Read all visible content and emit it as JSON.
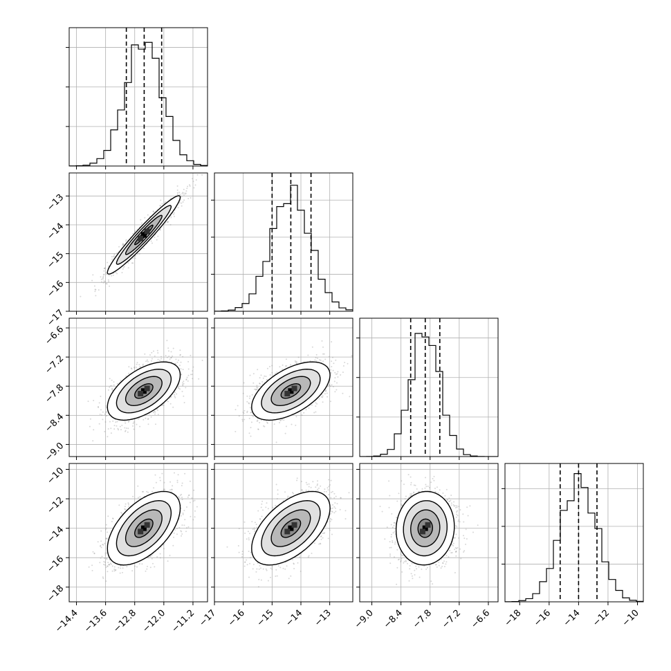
{
  "chart_data": {
    "type": "corner",
    "grid": true,
    "axes": {
      "p0": {
        "lim": [
          -14.6,
          -10.8
        ],
        "ticks": [
          -14.4,
          -13.6,
          -12.8,
          -12.0,
          -11.2
        ],
        "labels": [
          "−14.4",
          "−13.6",
          "−12.8",
          "−12.0",
          "−11.2"
        ]
      },
      "p1": {
        "lim": [
          -17.0,
          -12.2
        ],
        "ticks": [
          -17,
          -16,
          -15,
          -14,
          -13
        ],
        "labels": [
          "−17",
          "−16",
          "−15",
          "−14",
          "−13"
        ]
      },
      "p2": {
        "lim": [
          -9.25,
          -6.4
        ],
        "ticks": [
          -9.0,
          -8.4,
          -7.8,
          -7.2,
          -6.6
        ],
        "labels": [
          "−9.0",
          "−8.4",
          "−7.8",
          "−7.2",
          "−6.6"
        ]
      },
      "p3": {
        "lim": [
          -19.0,
          -9.6
        ],
        "ticks": [
          -18,
          -16,
          -14,
          -12,
          -10
        ],
        "labels": [
          "−18",
          "−16",
          "−14",
          "−12",
          "−10"
        ]
      }
    },
    "marginals": [
      {
        "param": "p0",
        "mean": -12.55,
        "sd": 0.5,
        "quantiles": [
          -13.03,
          -12.54,
          -12.06
        ],
        "ylim": [
          0,
          1.05
        ],
        "yticks": [
          0.3,
          0.6,
          0.9
        ]
      },
      {
        "param": "p1",
        "mean": -14.35,
        "sd": 0.68,
        "quantiles": [
          -15.0,
          -14.35,
          -13.65
        ],
        "ylim": [
          0,
          1.12
        ],
        "yticks": [
          0.3,
          0.6,
          0.9
        ]
      },
      {
        "param": "p2",
        "mean": -7.9,
        "sd": 0.3,
        "quantiles": [
          -8.2,
          -7.9,
          -7.6
        ],
        "ylim": [
          0,
          1.05
        ],
        "yticks": [
          0.3,
          0.6,
          0.9
        ]
      },
      {
        "param": "p3",
        "mean": -14.0,
        "sd": 1.25,
        "quantiles": [
          -15.25,
          -14.0,
          -12.75
        ],
        "ylim": [
          0,
          1.1
        ],
        "yticks": [
          0.3,
          0.6,
          0.9
        ]
      }
    ],
    "pairs": [
      {
        "x": "p0",
        "y": "p1",
        "corr": 0.96
      },
      {
        "x": "p0",
        "y": "p2",
        "corr": 0.55
      },
      {
        "x": "p1",
        "y": "p2",
        "corr": 0.55
      },
      {
        "x": "p0",
        "y": "p3",
        "corr": 0.55
      },
      {
        "x": "p1",
        "y": "p3",
        "corr": 0.55
      },
      {
        "x": "p2",
        "y": "p3",
        "corr": 0.05
      }
    ],
    "contour_levels_sigma": [
      0.5,
      1.0,
      1.5,
      2.0
    ],
    "colors": {
      "line": "#000000",
      "grid": "#b0b0b0",
      "points": "#8c8c8c",
      "background": "#ffffff"
    }
  }
}
